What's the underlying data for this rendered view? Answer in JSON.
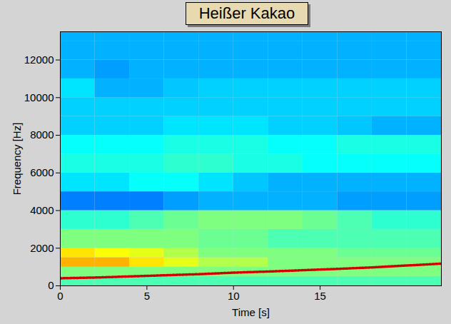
{
  "chart_data": {
    "type": "heatmap",
    "title": "Heißer Kakao",
    "x_label": "Time [s]",
    "y_label": "Frequency [Hz]",
    "xlim": [
      0,
      22
    ],
    "ylim": [
      0,
      13500
    ],
    "xticks": [
      0,
      5,
      10,
      15
    ],
    "yticks": [
      0,
      2000,
      4000,
      6000,
      8000,
      10000,
      12000
    ],
    "x_edges": [
      0,
      2,
      4,
      6,
      8,
      10,
      12,
      14,
      16,
      18,
      20,
      22
    ],
    "y_edges": [
      0,
      500,
      1000,
      1500,
      2000,
      3000,
      4000,
      5000,
      6000,
      7000,
      8000,
      9000,
      10000,
      11000,
      12000,
      13000,
      13500
    ],
    "zlim": [
      0,
      1
    ],
    "cells": [
      [
        0.45,
        0.45,
        0.45,
        0.45,
        0.45,
        0.45,
        0.45,
        0.45,
        0.45,
        0.45,
        0.45
      ],
      [
        0.5,
        0.5,
        0.5,
        0.5,
        0.5,
        0.5,
        0.5,
        0.5,
        0.5,
        0.5,
        0.5
      ],
      [
        0.7,
        0.7,
        0.65,
        0.6,
        0.55,
        0.55,
        0.5,
        0.5,
        0.5,
        0.5,
        0.5
      ],
      [
        0.65,
        0.62,
        0.6,
        0.55,
        0.5,
        0.5,
        0.5,
        0.5,
        0.48,
        0.48,
        0.48
      ],
      [
        0.5,
        0.5,
        0.5,
        0.5,
        0.48,
        0.48,
        0.45,
        0.45,
        0.45,
        0.45,
        0.45
      ],
      [
        0.42,
        0.42,
        0.45,
        0.48,
        0.5,
        0.5,
        0.5,
        0.48,
        0.45,
        0.42,
        0.42
      ],
      [
        0.25,
        0.25,
        0.25,
        0.28,
        0.3,
        0.3,
        0.3,
        0.3,
        0.28,
        0.28,
        0.28
      ],
      [
        0.35,
        0.35,
        0.38,
        0.38,
        0.35,
        0.32,
        0.3,
        0.3,
        0.3,
        0.3,
        0.3
      ],
      [
        0.4,
        0.4,
        0.4,
        0.42,
        0.42,
        0.4,
        0.4,
        0.38,
        0.38,
        0.38,
        0.38
      ],
      [
        0.38,
        0.38,
        0.38,
        0.4,
        0.4,
        0.4,
        0.38,
        0.38,
        0.4,
        0.4,
        0.4
      ],
      [
        0.33,
        0.33,
        0.33,
        0.35,
        0.35,
        0.35,
        0.33,
        0.33,
        0.32,
        0.3,
        0.3
      ],
      [
        0.33,
        0.33,
        0.33,
        0.33,
        0.33,
        0.33,
        0.33,
        0.33,
        0.33,
        0.33,
        0.33
      ],
      [
        0.35,
        0.3,
        0.3,
        0.32,
        0.33,
        0.33,
        0.33,
        0.33,
        0.33,
        0.33,
        0.33
      ],
      [
        0.3,
        0.28,
        0.3,
        0.3,
        0.3,
        0.3,
        0.3,
        0.3,
        0.3,
        0.3,
        0.3
      ],
      [
        0.3,
        0.3,
        0.3,
        0.3,
        0.3,
        0.3,
        0.3,
        0.3,
        0.3,
        0.3,
        0.3
      ],
      [
        0.3,
        0.3,
        0.3,
        0.3,
        0.3,
        0.3,
        0.3,
        0.3,
        0.3,
        0.3,
        0.3
      ]
    ],
    "series": [
      {
        "type": "line",
        "color": "#d40000",
        "line_style": "dotted",
        "x": [
          0,
          2,
          4,
          6,
          8,
          10,
          12,
          14,
          16,
          18,
          20,
          22
        ],
        "values": [
          400,
          440,
          500,
          560,
          620,
          700,
          760,
          830,
          900,
          980,
          1080,
          1180
        ]
      }
    ]
  }
}
